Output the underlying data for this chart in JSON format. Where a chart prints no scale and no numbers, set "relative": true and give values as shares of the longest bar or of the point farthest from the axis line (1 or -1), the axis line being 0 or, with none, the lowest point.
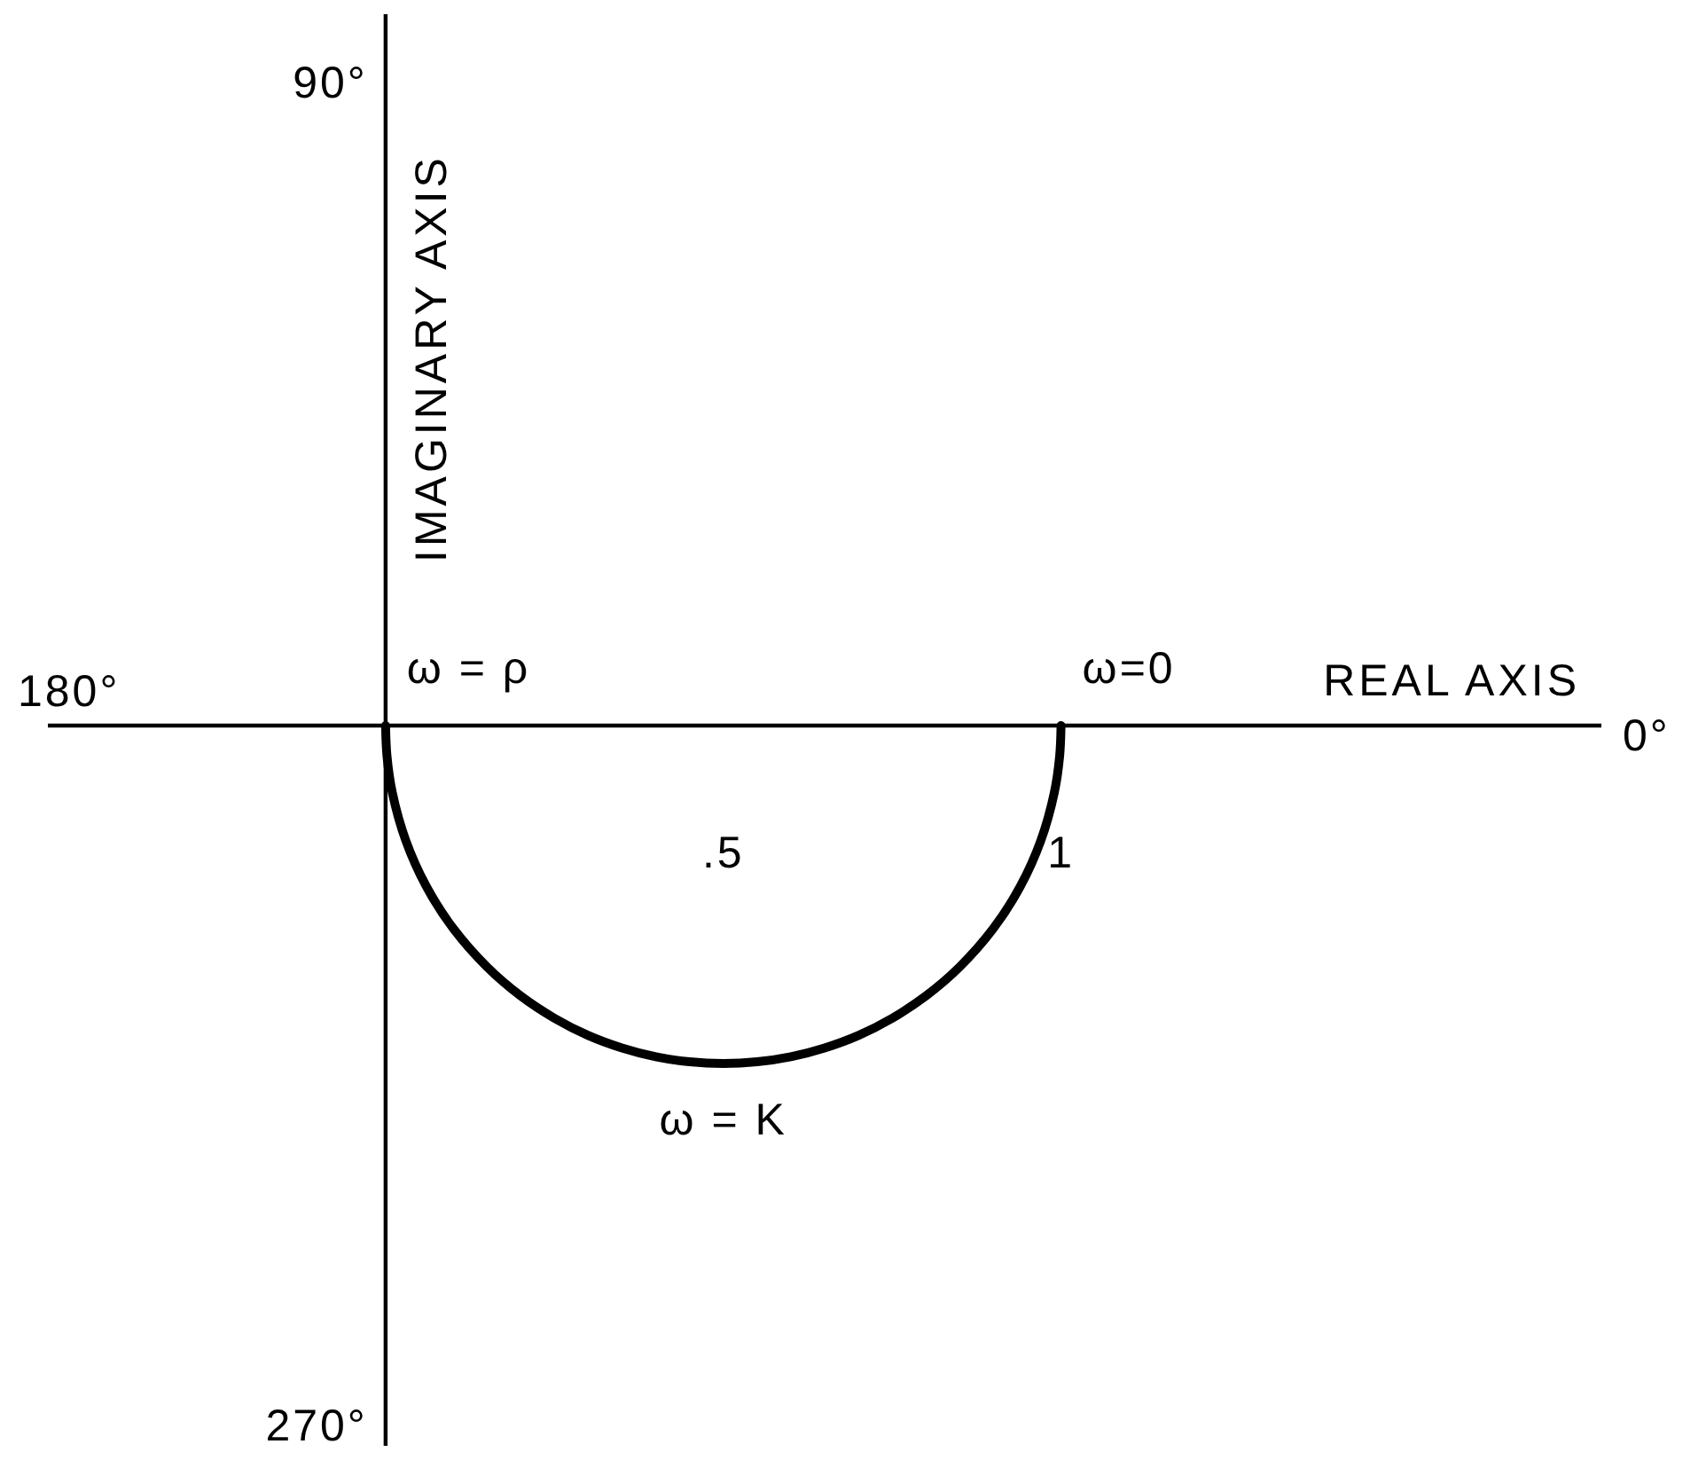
{
  "chart_data": {
    "type": "line",
    "xlabel": "REAL AXIS",
    "ylabel": "IMAGINARY AXIS",
    "relative": true,
    "xlim": [
      -0.5,
      1.8
    ],
    "xticks": [
      {
        "value": 0.5,
        "label": ".5"
      },
      1
    ],
    "series": [
      {
        "color": "#000000",
        "x": [
          0,
          0.002,
          0.01,
          0.03,
          0.06,
          0.1,
          0.15,
          0.2,
          0.25,
          0.3,
          0.35,
          0.4,
          0.45,
          0.5,
          0.55,
          0.6,
          0.65,
          0.7,
          0.75,
          0.8,
          0.85,
          0.9,
          0.94,
          0.97,
          0.99,
          0.998,
          1
        ],
        "values": [
          0,
          -0.089,
          -0.199,
          -0.341,
          -0.475,
          -0.6,
          -0.714,
          -0.8,
          -0.866,
          -0.917,
          -0.954,
          -0.98,
          -0.995,
          -1,
          -0.995,
          -0.98,
          -0.954,
          -0.917,
          -0.866,
          -0.8,
          -0.714,
          -0.6,
          -0.475,
          -0.341,
          -0.199,
          -0.089,
          0
        ]
      }
    ],
    "annotations": [
      {
        "text": "ω = ρ",
        "x": 0,
        "y": 0
      },
      {
        "text": "ω=0",
        "x": 1,
        "y": 0
      },
      {
        "text": "ω = K",
        "x": 0.5,
        "y": -1
      },
      "90°",
      "180°",
      "0°",
      "270°"
    ]
  }
}
